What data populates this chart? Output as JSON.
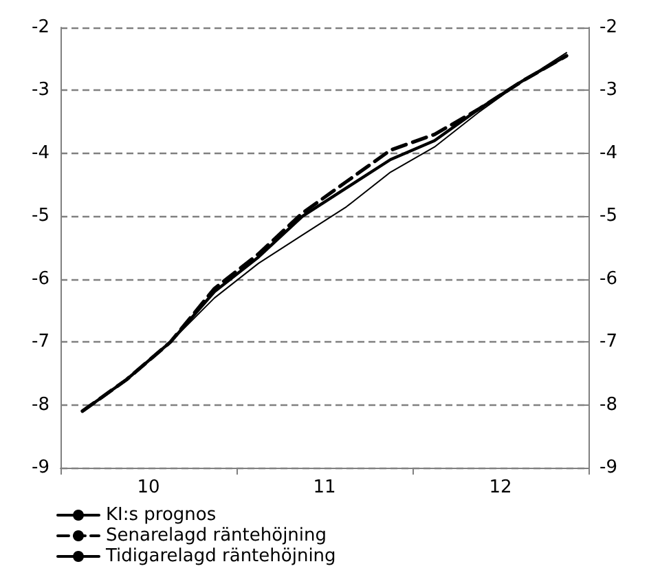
{
  "chart_data": {
    "type": "line",
    "x": [
      9.625,
      9.875,
      10.125,
      10.375,
      10.625,
      10.875,
      11.125,
      11.375,
      11.625,
      11.875,
      12.125,
      12.375
    ],
    "xlim": [
      9.5,
      12.5
    ],
    "xticks": [
      {
        "value": 9.5,
        "label": null
      },
      10,
      {
        "value": 10.5,
        "label": null
      },
      11,
      {
        "value": 11.5,
        "label": null
      },
      12,
      {
        "value": 12.5,
        "label": null
      }
    ],
    "ylim": [
      -9,
      -2
    ],
    "yticks": [
      -9,
      -8,
      -7,
      -6,
      -5,
      -4,
      -3,
      -2
    ],
    "y2lim": [
      -9,
      -2
    ],
    "y2ticks": [
      -9,
      -8,
      -7,
      -6,
      -5,
      -4,
      -3,
      -2
    ],
    "grid": "y",
    "legend": "bottom left",
    "marker": "none",
    "series": [
      {
        "name": "KI:s prognos",
        "color": "#000000",
        "line_style": "solid",
        "values": [
          -8.1,
          -7.6,
          -7.0,
          -6.2,
          -5.65,
          -5.0,
          -4.55,
          -4.1,
          -3.8,
          -3.3,
          -2.85,
          -2.45
        ]
      },
      {
        "name": "Senarelagd räntehöjning",
        "color": "#000000",
        "line_style": "dashed",
        "values": [
          -8.1,
          -7.6,
          -7.0,
          -6.15,
          -5.6,
          -4.95,
          -4.45,
          -3.95,
          -3.7,
          -3.3,
          -2.85,
          -2.45
        ]
      },
      {
        "name": "Tidigarelagd räntehöjning",
        "color": "#000000",
        "line_style": "solid",
        "values": [
          -8.1,
          -7.6,
          -7.0,
          -6.3,
          -5.75,
          -5.3,
          -4.85,
          -4.3,
          -3.9,
          -3.35,
          -2.85,
          -2.4
        ]
      }
    ]
  }
}
